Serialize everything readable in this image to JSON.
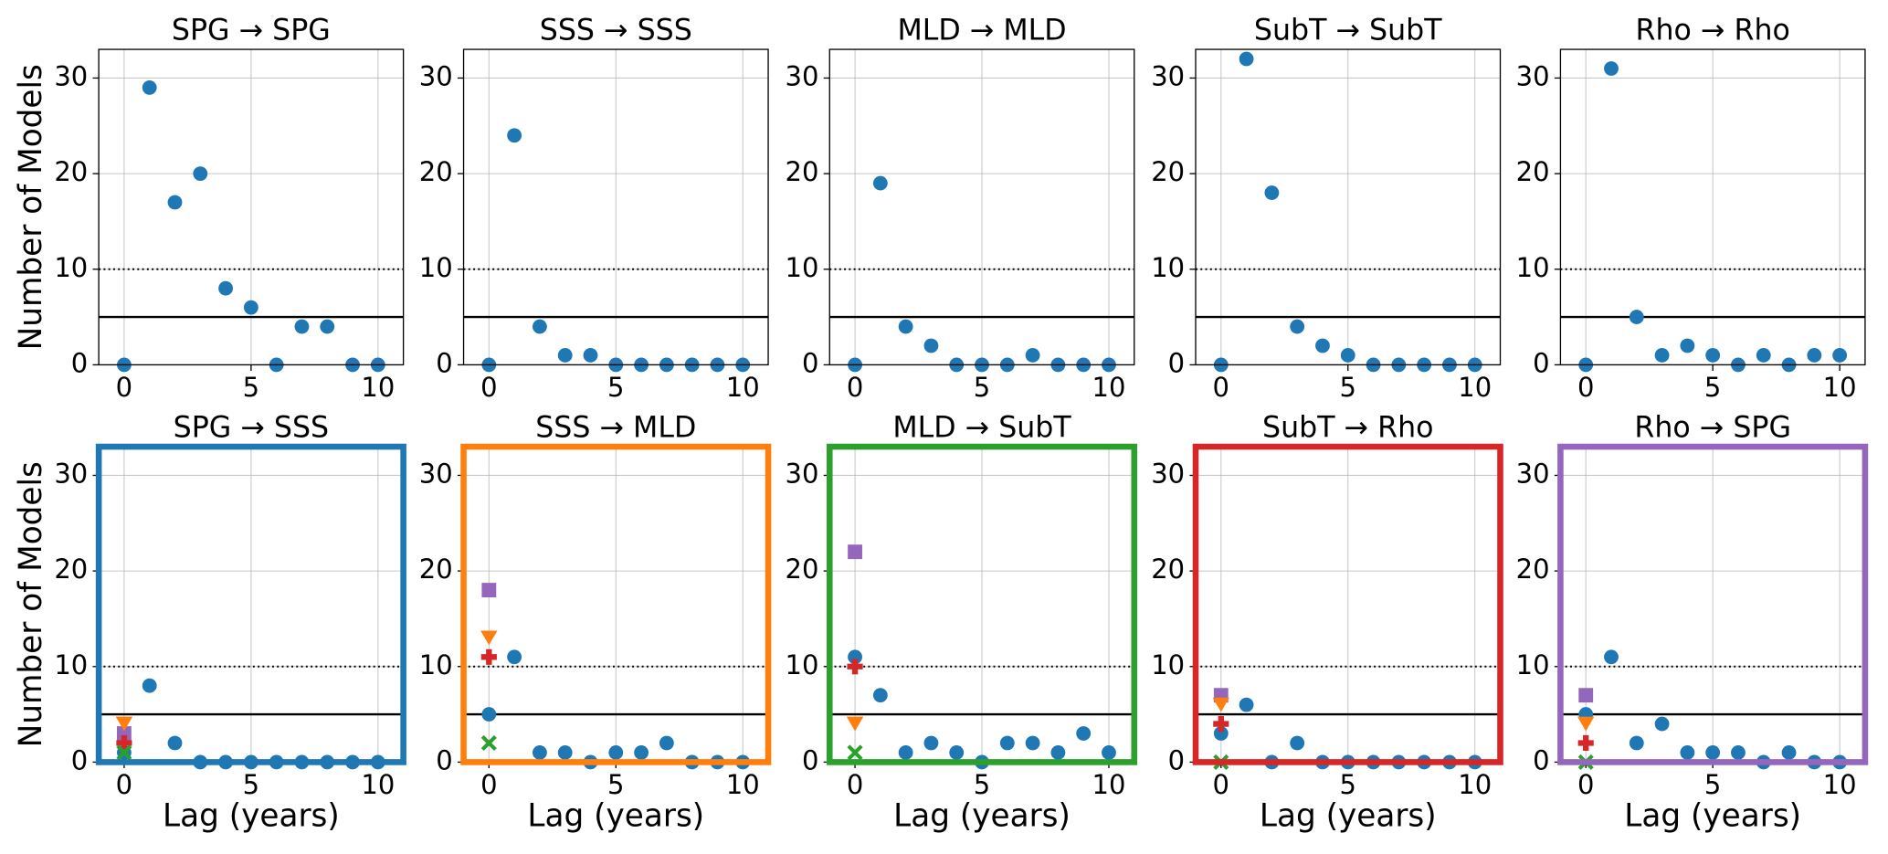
{
  "chart_data": [
    {
      "type": "scatter",
      "title": "SPG → SPG",
      "ylabel": "Number of Models",
      "x": [
        0,
        1,
        2,
        3,
        4,
        5,
        6,
        7,
        8,
        9,
        10
      ],
      "series": [
        {
          "marker": "o",
          "color": "#1f77b4",
          "values": [
            0,
            29,
            17,
            20,
            8,
            6,
            0,
            4,
            4,
            0,
            0
          ]
        }
      ],
      "xlim": [
        -1,
        11
      ],
      "ylim": [
        0,
        33
      ],
      "xticks": [
        0,
        5,
        10
      ],
      "yticks": [
        0,
        10,
        20,
        30
      ],
      "grid": true,
      "hlines": [
        {
          "value": 10,
          "style": "dotted"
        },
        {
          "value": 5,
          "style": "solid"
        }
      ],
      "frame_color": "#000000"
    },
    {
      "type": "scatter",
      "title": "SSS → SSS",
      "x": [
        0,
        1,
        2,
        3,
        4,
        5,
        6,
        7,
        8,
        9,
        10
      ],
      "series": [
        {
          "marker": "o",
          "color": "#1f77b4",
          "values": [
            0,
            24,
            4,
            1,
            1,
            0,
            0,
            0,
            0,
            0,
            0
          ]
        }
      ],
      "xlim": [
        -1,
        11
      ],
      "ylim": [
        0,
        33
      ],
      "xticks": [
        0,
        5,
        10
      ],
      "yticks": [
        0,
        10,
        20,
        30
      ],
      "grid": true,
      "hlines": [
        {
          "value": 10,
          "style": "dotted"
        },
        {
          "value": 5,
          "style": "solid"
        }
      ],
      "frame_color": "#000000"
    },
    {
      "type": "scatter",
      "title": "MLD → MLD",
      "x": [
        0,
        1,
        2,
        3,
        4,
        5,
        6,
        7,
        8,
        9,
        10
      ],
      "series": [
        {
          "marker": "o",
          "color": "#1f77b4",
          "values": [
            0,
            19,
            4,
            2,
            0,
            0,
            0,
            1,
            0,
            0,
            0
          ]
        }
      ],
      "xlim": [
        -1,
        11
      ],
      "ylim": [
        0,
        33
      ],
      "xticks": [
        0,
        5,
        10
      ],
      "yticks": [
        0,
        10,
        20,
        30
      ],
      "grid": true,
      "hlines": [
        {
          "value": 10,
          "style": "dotted"
        },
        {
          "value": 5,
          "style": "solid"
        }
      ],
      "frame_color": "#000000"
    },
    {
      "type": "scatter",
      "title": "SubT → SubT",
      "x": [
        0,
        1,
        2,
        3,
        4,
        5,
        6,
        7,
        8,
        9,
        10
      ],
      "series": [
        {
          "marker": "o",
          "color": "#1f77b4",
          "values": [
            0,
            32,
            18,
            4,
            2,
            1,
            0,
            0,
            0,
            0,
            0
          ]
        }
      ],
      "xlim": [
        -1,
        11
      ],
      "ylim": [
        0,
        33
      ],
      "xticks": [
        0,
        5,
        10
      ],
      "yticks": [
        0,
        10,
        20,
        30
      ],
      "grid": true,
      "hlines": [
        {
          "value": 10,
          "style": "dotted"
        },
        {
          "value": 5,
          "style": "solid"
        }
      ],
      "frame_color": "#000000"
    },
    {
      "type": "scatter",
      "title": "Rho → Rho",
      "x": [
        0,
        1,
        2,
        3,
        4,
        5,
        6,
        7,
        8,
        9,
        10
      ],
      "series": [
        {
          "marker": "o",
          "color": "#1f77b4",
          "values": [
            0,
            31,
            5,
            1,
            2,
            1,
            0,
            1,
            0,
            1,
            1
          ]
        }
      ],
      "xlim": [
        -1,
        11
      ],
      "ylim": [
        0,
        33
      ],
      "xticks": [
        0,
        5,
        10
      ],
      "yticks": [
        0,
        10,
        20,
        30
      ],
      "grid": true,
      "hlines": [
        {
          "value": 10,
          "style": "dotted"
        },
        {
          "value": 5,
          "style": "solid"
        }
      ],
      "frame_color": "#000000"
    },
    {
      "type": "scatter",
      "title": "SPG → SSS",
      "ylabel": "Number of Models",
      "xlabel": "Lag (years)",
      "x": [
        0,
        1,
        2,
        3,
        4,
        5,
        6,
        7,
        8,
        9,
        10
      ],
      "series": [
        {
          "marker": "o",
          "color": "#1f77b4",
          "values": [
            1,
            8,
            2,
            0,
            0,
            0,
            0,
            0,
            0,
            0,
            0
          ]
        },
        {
          "marker": "s",
          "color": "#9467bd",
          "x": [
            0
          ],
          "values": [
            3
          ]
        },
        {
          "marker": "v",
          "color": "#ff7f0e",
          "x": [
            0
          ],
          "values": [
            4
          ]
        },
        {
          "marker": "P",
          "color": "#d62728",
          "x": [
            0
          ],
          "values": [
            2
          ]
        },
        {
          "marker": "X",
          "color": "#2ca02c",
          "x": [
            0
          ],
          "values": [
            1
          ]
        }
      ],
      "xlim": [
        -1,
        11
      ],
      "ylim": [
        0,
        33
      ],
      "xticks": [
        0,
        5,
        10
      ],
      "yticks": [
        0,
        10,
        20,
        30
      ],
      "grid": true,
      "hlines": [
        {
          "value": 10,
          "style": "dotted"
        },
        {
          "value": 5,
          "style": "solid"
        }
      ],
      "frame_color": "#1f77b4"
    },
    {
      "type": "scatter",
      "title": "SSS → MLD",
      "xlabel": "Lag (years)",
      "x": [
        0,
        1,
        2,
        3,
        4,
        5,
        6,
        7,
        8,
        9,
        10
      ],
      "series": [
        {
          "marker": "o",
          "color": "#1f77b4",
          "values": [
            5,
            11,
            1,
            1,
            0,
            1,
            1,
            2,
            0,
            0,
            0
          ]
        },
        {
          "marker": "s",
          "color": "#9467bd",
          "x": [
            0
          ],
          "values": [
            18
          ]
        },
        {
          "marker": "v",
          "color": "#ff7f0e",
          "x": [
            0
          ],
          "values": [
            13
          ]
        },
        {
          "marker": "P",
          "color": "#d62728",
          "x": [
            0
          ],
          "values": [
            11
          ]
        },
        {
          "marker": "X",
          "color": "#2ca02c",
          "x": [
            0
          ],
          "values": [
            2
          ]
        }
      ],
      "xlim": [
        -1,
        11
      ],
      "ylim": [
        0,
        33
      ],
      "xticks": [
        0,
        5,
        10
      ],
      "yticks": [
        0,
        10,
        20,
        30
      ],
      "grid": true,
      "hlines": [
        {
          "value": 10,
          "style": "dotted"
        },
        {
          "value": 5,
          "style": "solid"
        }
      ],
      "frame_color": "#ff7f0e"
    },
    {
      "type": "scatter",
      "title": "MLD → SubT",
      "xlabel": "Lag (years)",
      "x": [
        0,
        1,
        2,
        3,
        4,
        5,
        6,
        7,
        8,
        9,
        10
      ],
      "series": [
        {
          "marker": "o",
          "color": "#1f77b4",
          "values": [
            11,
            7,
            1,
            2,
            1,
            0,
            2,
            2,
            1,
            3,
            1
          ]
        },
        {
          "marker": "s",
          "color": "#9467bd",
          "x": [
            0
          ],
          "values": [
            22
          ]
        },
        {
          "marker": "v",
          "color": "#ff7f0e",
          "x": [
            0
          ],
          "values": [
            4
          ]
        },
        {
          "marker": "P",
          "color": "#d62728",
          "x": [
            0
          ],
          "values": [
            10
          ]
        },
        {
          "marker": "X",
          "color": "#2ca02c",
          "x": [
            0
          ],
          "values": [
            1
          ]
        }
      ],
      "xlim": [
        -1,
        11
      ],
      "ylim": [
        0,
        33
      ],
      "xticks": [
        0,
        5,
        10
      ],
      "yticks": [
        0,
        10,
        20,
        30
      ],
      "grid": true,
      "hlines": [
        {
          "value": 10,
          "style": "dotted"
        },
        {
          "value": 5,
          "style": "solid"
        }
      ],
      "frame_color": "#2ca02c"
    },
    {
      "type": "scatter",
      "title": "SubT → Rho",
      "xlabel": "Lag (years)",
      "x": [
        0,
        1,
        2,
        3,
        4,
        5,
        6,
        7,
        8,
        9,
        10
      ],
      "series": [
        {
          "marker": "o",
          "color": "#1f77b4",
          "values": [
            3,
            6,
            0,
            2,
            0,
            0,
            0,
            0,
            0,
            0,
            0
          ]
        },
        {
          "marker": "s",
          "color": "#9467bd",
          "x": [
            0
          ],
          "values": [
            7
          ]
        },
        {
          "marker": "v",
          "color": "#ff7f0e",
          "x": [
            0
          ],
          "values": [
            6
          ]
        },
        {
          "marker": "P",
          "color": "#d62728",
          "x": [
            0
          ],
          "values": [
            4
          ]
        },
        {
          "marker": "X",
          "color": "#2ca02c",
          "x": [
            0
          ],
          "values": [
            0
          ]
        }
      ],
      "xlim": [
        -1,
        11
      ],
      "ylim": [
        0,
        33
      ],
      "xticks": [
        0,
        5,
        10
      ],
      "yticks": [
        0,
        10,
        20,
        30
      ],
      "grid": true,
      "hlines": [
        {
          "value": 10,
          "style": "dotted"
        },
        {
          "value": 5,
          "style": "solid"
        }
      ],
      "frame_color": "#d62728"
    },
    {
      "type": "scatter",
      "title": "Rho → SPG",
      "xlabel": "Lag (years)",
      "x": [
        0,
        1,
        2,
        3,
        4,
        5,
        6,
        7,
        8,
        9,
        10
      ],
      "series": [
        {
          "marker": "o",
          "color": "#1f77b4",
          "values": [
            5,
            11,
            2,
            4,
            1,
            1,
            1,
            0,
            1,
            0,
            0
          ]
        },
        {
          "marker": "s",
          "color": "#9467bd",
          "x": [
            0
          ],
          "values": [
            7
          ]
        },
        {
          "marker": "v",
          "color": "#ff7f0e",
          "x": [
            0
          ],
          "values": [
            4
          ]
        },
        {
          "marker": "P",
          "color": "#d62728",
          "x": [
            0
          ],
          "values": [
            2
          ]
        },
        {
          "marker": "X",
          "color": "#2ca02c",
          "x": [
            0
          ],
          "values": [
            0
          ]
        }
      ],
      "xlim": [
        -1,
        11
      ],
      "ylim": [
        0,
        33
      ],
      "xticks": [
        0,
        5,
        10
      ],
      "yticks": [
        0,
        10,
        20,
        30
      ],
      "grid": true,
      "hlines": [
        {
          "value": 10,
          "style": "dotted"
        },
        {
          "value": 5,
          "style": "solid"
        }
      ],
      "frame_color": "#9467bd"
    }
  ]
}
